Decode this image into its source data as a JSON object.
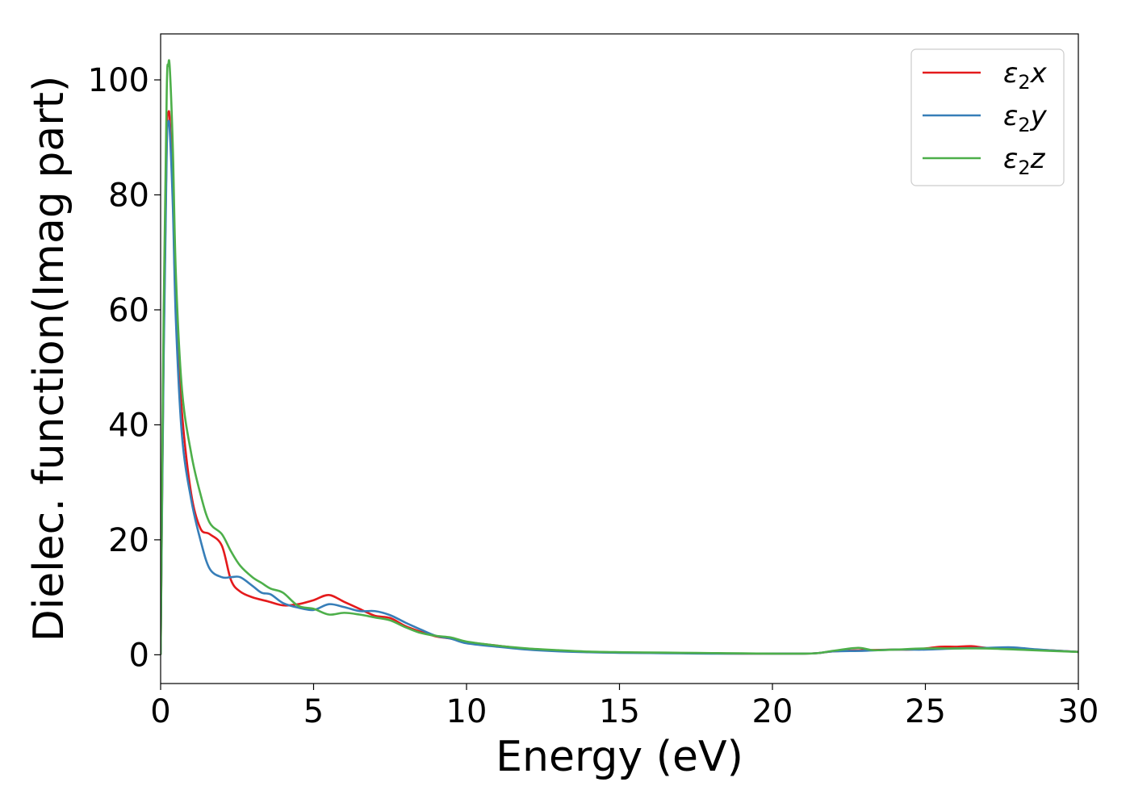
{
  "chart_data": {
    "type": "line",
    "xlabel": "Energy (eV)",
    "ylabel": "Dielec. function(Imag part)",
    "xlim": [
      0,
      30
    ],
    "ylim": [
      -5,
      108
    ],
    "xticks": [
      0,
      5,
      10,
      15,
      20,
      25,
      30
    ],
    "yticks": [
      0,
      20,
      40,
      60,
      80,
      100
    ],
    "legend_position": "top-right",
    "grid": false,
    "series": [
      {
        "name": "ε2x",
        "legend_base": "ε",
        "legend_sub": "2",
        "legend_suffix": "x",
        "color": "#e41a1c",
        "x": [
          0,
          0.1,
          0.2,
          0.25,
          0.3,
          0.4,
          0.5,
          0.7,
          1.0,
          1.3,
          1.6,
          2.0,
          2.3,
          2.6,
          3.0,
          3.5,
          4.0,
          4.5,
          5.0,
          5.5,
          6.0,
          6.5,
          7.0,
          7.5,
          8.0,
          8.5,
          9.0,
          9.5,
          10.0,
          11.0,
          12.0,
          13.0,
          14.0,
          15.0,
          16.0,
          17.0,
          18.0,
          19.0,
          20.0,
          21.0,
          21.5,
          22.0,
          23.0,
          24.0,
          24.5,
          25.0,
          25.5,
          26.0,
          26.5,
          27.0,
          28.0,
          29.0,
          30.0
        ],
        "y": [
          0,
          55,
          90,
          94,
          93,
          80,
          60,
          42,
          28,
          22,
          21,
          19,
          13,
          11,
          10,
          9.3,
          8.6,
          8.8,
          9.5,
          10.4,
          9.2,
          8.0,
          6.8,
          6.4,
          5.0,
          4.0,
          3.2,
          2.8,
          2.2,
          1.6,
          1.0,
          0.7,
          0.5,
          0.4,
          0.35,
          0.3,
          0.25,
          0.2,
          0.2,
          0.2,
          0.3,
          0.6,
          0.8,
          0.9,
          0.9,
          1.1,
          1.4,
          1.4,
          1.5,
          1.2,
          1.0,
          0.8,
          0.5
        ]
      },
      {
        "name": "ε2y",
        "legend_base": "ε",
        "legend_sub": "2",
        "legend_suffix": "y",
        "color": "#377eb8",
        "x": [
          0,
          0.1,
          0.2,
          0.25,
          0.3,
          0.4,
          0.5,
          0.7,
          1.0,
          1.3,
          1.6,
          2.0,
          2.3,
          2.6,
          3.0,
          3.3,
          3.6,
          4.0,
          4.5,
          5.0,
          5.5,
          6.0,
          6.5,
          7.0,
          7.5,
          8.0,
          8.5,
          9.0,
          9.5,
          10.0,
          11.0,
          12.0,
          13.0,
          14.0,
          15.0,
          16.0,
          17.0,
          18.0,
          19.0,
          20.0,
          21.0,
          21.5,
          22.0,
          23.0,
          24.0,
          25.0,
          26.0,
          27.0,
          27.8,
          28.5,
          29.0,
          30.0
        ],
        "y": [
          0,
          52,
          88,
          92.5,
          91,
          78,
          58,
          38,
          27,
          20,
          15,
          13.5,
          13.5,
          13.5,
          12,
          10.8,
          10.5,
          9.0,
          8.2,
          7.8,
          8.8,
          8.3,
          7.6,
          7.6,
          6.9,
          5.6,
          4.4,
          3.3,
          2.8,
          2.0,
          1.4,
          0.9,
          0.6,
          0.45,
          0.35,
          0.3,
          0.25,
          0.2,
          0.2,
          0.2,
          0.2,
          0.3,
          0.6,
          0.7,
          0.9,
          0.9,
          1.1,
          1.2,
          1.3,
          1.0,
          0.8,
          0.5
        ]
      },
      {
        "name": "ε2z",
        "legend_base": "ε",
        "legend_sub": "2",
        "legend_suffix": "z",
        "color": "#4daf4a",
        "x": [
          0,
          0.1,
          0.2,
          0.25,
          0.3,
          0.4,
          0.5,
          0.7,
          1.0,
          1.3,
          1.6,
          2.0,
          2.3,
          2.6,
          3.0,
          3.3,
          3.6,
          4.0,
          4.5,
          5.0,
          5.5,
          6.0,
          6.5,
          7.0,
          7.5,
          8.0,
          8.5,
          9.0,
          9.5,
          10.0,
          11.0,
          12.0,
          13.0,
          14.0,
          15.0,
          16.0,
          17.0,
          18.0,
          19.0,
          20.0,
          21.0,
          21.5,
          22.0,
          22.8,
          23.3,
          24.0,
          25.0,
          26.0,
          27.0,
          28.0,
          29.0,
          30.0
        ],
        "y": [
          0,
          60,
          98,
          102.5,
          102,
          88,
          66,
          46,
          35,
          28,
          23,
          21,
          18,
          15.5,
          13.5,
          12.5,
          11.5,
          10.8,
          8.5,
          8.0,
          7.0,
          7.3,
          7.0,
          6.5,
          6.0,
          4.8,
          3.8,
          3.3,
          3.0,
          2.3,
          1.6,
          1.1,
          0.8,
          0.55,
          0.45,
          0.4,
          0.35,
          0.3,
          0.25,
          0.2,
          0.2,
          0.3,
          0.7,
          1.2,
          0.8,
          0.9,
          1.1,
          1.1,
          1.1,
          0.9,
          0.7,
          0.5
        ]
      }
    ]
  }
}
